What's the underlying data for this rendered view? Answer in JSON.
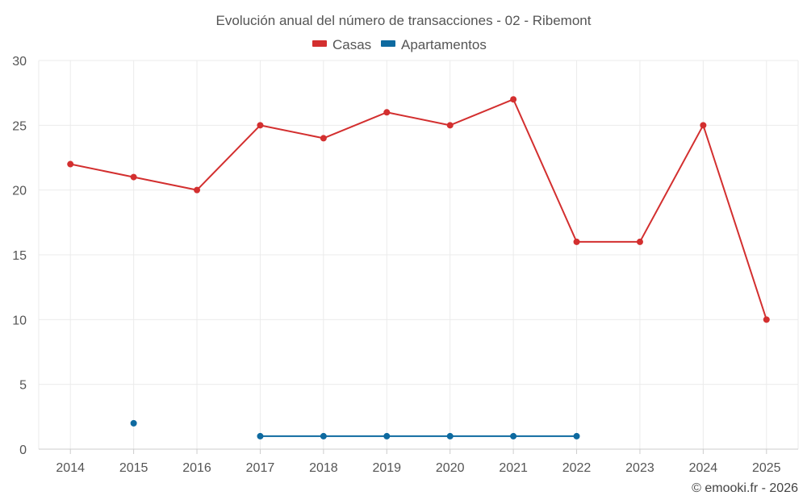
{
  "chart_data": {
    "type": "line",
    "title": "Evolución anual del número de transacciones - 02 - Ribemont",
    "categories": [
      "2014",
      "2015",
      "2016",
      "2017",
      "2018",
      "2019",
      "2020",
      "2021",
      "2022",
      "2023",
      "2024",
      "2025"
    ],
    "series": [
      {
        "name": "Casas",
        "color": "#d32f2f",
        "values": [
          22,
          21,
          20,
          25,
          24,
          26,
          25,
          27,
          16,
          16,
          25,
          10
        ]
      },
      {
        "name": "Apartamentos",
        "color": "#0e6aa0",
        "values": [
          null,
          2,
          null,
          1,
          1,
          1,
          1,
          1,
          1,
          null,
          null,
          null
        ]
      }
    ],
    "ylim": [
      0,
      30
    ],
    "yticks": [
      "0",
      "5",
      "10",
      "15",
      "20",
      "25",
      "30"
    ],
    "grid": true,
    "legend": "top-center"
  },
  "credit": "© emooki.fr - 2026"
}
